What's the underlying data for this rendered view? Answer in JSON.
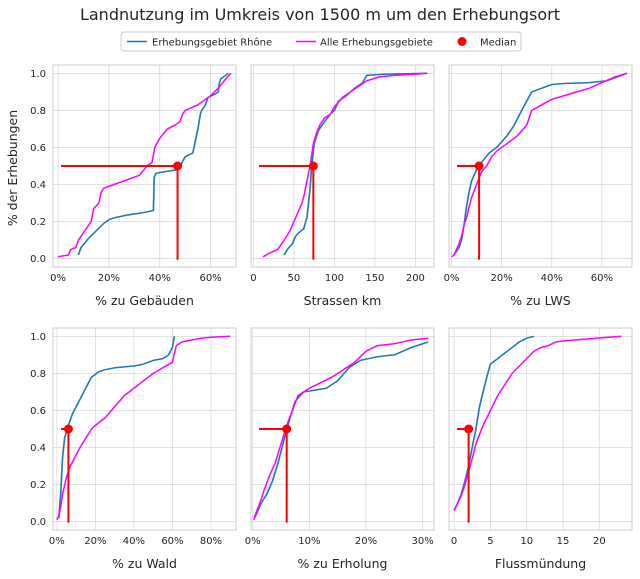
{
  "figure": {
    "title": "Landnutzung im Umkreis von 1500 m um den Erhebungsort",
    "ylabel": "% der Erhebungen"
  },
  "legend": {
    "entries": [
      {
        "label": "Erhebungsgebiet Rhône",
        "kind": "line",
        "color": "#1f77b4"
      },
      {
        "label": "Alle Erhebungsgebiete",
        "kind": "line",
        "color": "#ff00ff"
      },
      {
        "label": "Median",
        "kind": "marker",
        "color": "#ff0000"
      }
    ]
  },
  "colors": {
    "rhone": "#1f77b4",
    "alle": "#ff00ff",
    "median": "#ff0000",
    "band": "#a6c8e0"
  },
  "chart_data": [
    {
      "type": "line",
      "xlabel": "% zu Gebäuden",
      "ylim": [
        0,
        1
      ],
      "xlim": [
        -2,
        70
      ],
      "xticks": [
        0,
        20,
        40,
        60
      ],
      "xtick_labels": [
        "0%",
        "20%",
        "40%",
        "60%"
      ],
      "yticks": [
        0,
        0.2,
        0.4,
        0.6,
        0.8,
        1.0
      ],
      "ytick_labels": [
        "0.0",
        "0.2",
        "0.4",
        "0.6",
        "0.8",
        "1.0"
      ],
      "series": [
        {
          "name": "Erhebungsgebiet Rhône",
          "x": [
            8,
            9,
            12,
            15,
            18,
            20,
            22,
            27,
            32,
            36,
            37.5,
            37.8,
            38.5,
            42,
            47,
            48,
            50,
            53,
            55,
            56,
            56.5,
            58,
            59,
            62,
            63,
            63.5,
            64,
            67
          ],
          "y": [
            0.02,
            0.06,
            0.11,
            0.15,
            0.19,
            0.21,
            0.22,
            0.235,
            0.245,
            0.255,
            0.26,
            0.44,
            0.46,
            0.47,
            0.48,
            0.5,
            0.55,
            0.57,
            0.7,
            0.78,
            0.8,
            0.83,
            0.87,
            0.89,
            0.9,
            0.95,
            0.97,
            1.0
          ]
        },
        {
          "name": "Alle Erhebungsgebiete",
          "x": [
            0,
            4,
            5,
            7,
            8,
            10,
            13,
            14,
            16,
            17,
            18,
            22,
            28,
            32,
            35,
            37,
            38,
            40,
            43,
            46,
            47,
            48,
            49,
            50,
            55,
            58,
            60,
            63,
            66,
            68
          ],
          "y": [
            0.01,
            0.02,
            0.05,
            0.06,
            0.1,
            0.14,
            0.2,
            0.27,
            0.3,
            0.36,
            0.38,
            0.4,
            0.43,
            0.45,
            0.5,
            0.52,
            0.6,
            0.65,
            0.7,
            0.72,
            0.73,
            0.74,
            0.78,
            0.8,
            0.83,
            0.86,
            0.88,
            0.92,
            0.97,
            1.0
          ]
        }
      ],
      "median": {
        "x": 47,
        "y": 0.5
      }
    },
    {
      "type": "line",
      "xlabel": "Strassen km",
      "ylim": [
        0,
        1
      ],
      "xlim": [
        -3,
        223
      ],
      "xticks": [
        0,
        50,
        100,
        150,
        200
      ],
      "xtick_labels": [
        "0",
        "50",
        "100",
        "150",
        "200"
      ],
      "series": [
        {
          "name": "Erhebungsgebiet Rhône",
          "x": [
            38,
            42,
            48,
            52,
            56,
            62,
            66,
            68,
            70,
            72,
            75,
            80,
            88,
            95,
            100,
            105,
            115,
            125,
            135,
            140,
            142,
            160,
            215
          ],
          "y": [
            0.02,
            0.05,
            0.08,
            0.12,
            0.14,
            0.16,
            0.22,
            0.3,
            0.38,
            0.5,
            0.62,
            0.69,
            0.74,
            0.78,
            0.8,
            0.85,
            0.88,
            0.92,
            0.95,
            0.99,
            0.99,
            0.995,
            1.0
          ]
        },
        {
          "name": "Alle Erhebungsgebiete",
          "x": [
            12,
            20,
            30,
            38,
            45,
            50,
            55,
            60,
            63,
            66,
            70,
            74,
            78,
            82,
            88,
            95,
            100,
            110,
            120,
            130,
            140,
            155,
            175,
            200,
            215
          ],
          "y": [
            0.01,
            0.03,
            0.05,
            0.1,
            0.15,
            0.2,
            0.25,
            0.3,
            0.35,
            0.42,
            0.5,
            0.62,
            0.68,
            0.72,
            0.76,
            0.78,
            0.82,
            0.87,
            0.9,
            0.93,
            0.96,
            0.98,
            0.99,
            0.995,
            1.0
          ]
        }
      ],
      "median": {
        "x": 74,
        "y": 0.5
      }
    },
    {
      "type": "line",
      "xlabel": "% zu LWS",
      "ylim": [
        0,
        1
      ],
      "xlim": [
        -1,
        72
      ],
      "xticks": [
        0,
        20,
        40,
        60
      ],
      "xtick_labels": [
        "0%",
        "20%",
        "40%",
        "60%"
      ],
      "series": [
        {
          "name": "Erhebungsgebiet Rhône",
          "x": [
            1,
            3,
            4,
            5,
            6,
            7,
            8,
            10,
            12,
            15,
            18,
            20,
            22,
            25,
            28,
            30,
            32,
            36,
            40,
            45,
            55,
            62,
            66,
            70
          ],
          "y": [
            0.02,
            0.06,
            0.1,
            0.18,
            0.28,
            0.36,
            0.42,
            0.48,
            0.52,
            0.57,
            0.6,
            0.63,
            0.66,
            0.72,
            0.8,
            0.85,
            0.9,
            0.92,
            0.94,
            0.945,
            0.95,
            0.96,
            0.98,
            1.0
          ]
        },
        {
          "name": "Alle Erhebungsgebiete",
          "x": [
            0,
            1,
            2,
            3,
            4,
            5,
            6,
            7,
            8,
            10,
            12,
            14,
            16,
            18,
            22,
            26,
            30,
            32,
            36,
            40,
            45,
            50,
            55,
            60,
            65,
            70
          ],
          "y": [
            0.01,
            0.02,
            0.05,
            0.08,
            0.12,
            0.18,
            0.22,
            0.28,
            0.33,
            0.4,
            0.47,
            0.5,
            0.55,
            0.58,
            0.62,
            0.66,
            0.72,
            0.8,
            0.83,
            0.86,
            0.88,
            0.9,
            0.92,
            0.95,
            0.98,
            1.0
          ]
        }
      ],
      "median": {
        "x": 11,
        "y": 0.5
      }
    },
    {
      "type": "line",
      "xlabel": "% zu Wald",
      "ylim": [
        0,
        1
      ],
      "xlim": [
        -2,
        93
      ],
      "xticks": [
        0,
        20,
        40,
        60,
        80
      ],
      "xtick_labels": [
        "0%",
        "20%",
        "40%",
        "60%",
        "80%"
      ],
      "series": [
        {
          "name": "Erhebungsgebiet Rhône",
          "x": [
            1,
            2,
            3,
            4,
            6,
            8,
            10,
            12,
            15,
            18,
            22,
            25,
            30,
            35,
            40,
            45,
            50,
            55,
            58,
            60,
            61
          ],
          "y": [
            0.02,
            0.15,
            0.35,
            0.45,
            0.52,
            0.58,
            0.62,
            0.66,
            0.72,
            0.78,
            0.81,
            0.82,
            0.83,
            0.835,
            0.84,
            0.85,
            0.87,
            0.88,
            0.9,
            0.94,
            1.0
          ]
        },
        {
          "name": "Alle Erhebungsgebiete",
          "x": [
            0,
            1,
            2,
            3,
            5,
            7,
            10,
            12,
            15,
            18,
            20,
            25,
            30,
            35,
            40,
            45,
            50,
            55,
            60,
            62,
            65,
            70,
            75,
            80,
            85,
            90
          ],
          "y": [
            0.01,
            0.03,
            0.08,
            0.15,
            0.24,
            0.3,
            0.36,
            0.4,
            0.45,
            0.5,
            0.52,
            0.56,
            0.62,
            0.68,
            0.72,
            0.76,
            0.8,
            0.83,
            0.86,
            0.95,
            0.97,
            0.98,
            0.99,
            0.995,
            0.998,
            1.0
          ]
        }
      ],
      "median": {
        "x": 6,
        "y": 0.5
      }
    },
    {
      "type": "line",
      "xlabel": "% zu Erholung",
      "ylim": [
        0,
        1
      ],
      "xlim": [
        -0.3,
        32
      ],
      "xticks": [
        0,
        10,
        20,
        30
      ],
      "xtick_labels": [
        "0%",
        "10%",
        "20%",
        "30%"
      ],
      "series": [
        {
          "name": "Erhebungsgebiet Rhône",
          "x": [
            0.3,
            0.8,
            1.5,
            2.5,
            3.5,
            4.5,
            5.5,
            6.5,
            7.5,
            9,
            11,
            13,
            15,
            17,
            19,
            22,
            25,
            28,
            31
          ],
          "y": [
            0.02,
            0.05,
            0.1,
            0.15,
            0.22,
            0.32,
            0.44,
            0.55,
            0.65,
            0.7,
            0.71,
            0.72,
            0.76,
            0.83,
            0.87,
            0.89,
            0.9,
            0.94,
            0.97
          ]
        },
        {
          "name": "Alle Erhebungsgebiete",
          "x": [
            0.2,
            0.5,
            1,
            1.5,
            2,
            3,
            4,
            5,
            6,
            7,
            8,
            10,
            12,
            14,
            16,
            18,
            20,
            22,
            25,
            28,
            31
          ],
          "y": [
            0.01,
            0.04,
            0.08,
            0.12,
            0.17,
            0.25,
            0.32,
            0.42,
            0.52,
            0.6,
            0.68,
            0.72,
            0.75,
            0.78,
            0.82,
            0.86,
            0.92,
            0.95,
            0.96,
            0.98,
            0.99
          ]
        }
      ],
      "median": {
        "x": 6,
        "y": 0.5
      }
    },
    {
      "type": "line",
      "xlabel": "Flussmündung",
      "ylim": [
        0,
        1
      ],
      "xlim": [
        -0.7,
        24.5
      ],
      "xticks": [
        0,
        5,
        10,
        15,
        20
      ],
      "xtick_labels": [
        "0",
        "5",
        "10",
        "15",
        "20"
      ],
      "series": [
        {
          "name": "Erhebungsgebiet Rhône",
          "x": [
            0,
            0.5,
            1,
            1.5,
            2,
            2.5,
            3,
            3.5,
            4,
            4.5,
            5,
            6,
            7,
            8,
            9,
            10,
            11
          ],
          "y": [
            0.06,
            0.1,
            0.15,
            0.22,
            0.3,
            0.4,
            0.5,
            0.62,
            0.7,
            0.78,
            0.85,
            0.88,
            0.91,
            0.94,
            0.97,
            0.99,
            1.0
          ]
        },
        {
          "name": "Alle Erhebungsgebiete",
          "x": [
            0,
            0.5,
            1,
            1.5,
            2,
            2.5,
            3,
            4,
            5,
            6,
            7,
            8,
            9,
            10,
            11,
            12,
            13,
            14,
            15,
            18,
            23
          ],
          "y": [
            0.06,
            0.1,
            0.14,
            0.2,
            0.27,
            0.34,
            0.42,
            0.52,
            0.6,
            0.68,
            0.74,
            0.8,
            0.84,
            0.88,
            0.92,
            0.94,
            0.95,
            0.97,
            0.975,
            0.985,
            1.0
          ]
        }
      ],
      "median": {
        "x": 2,
        "y": 0.5
      }
    }
  ]
}
